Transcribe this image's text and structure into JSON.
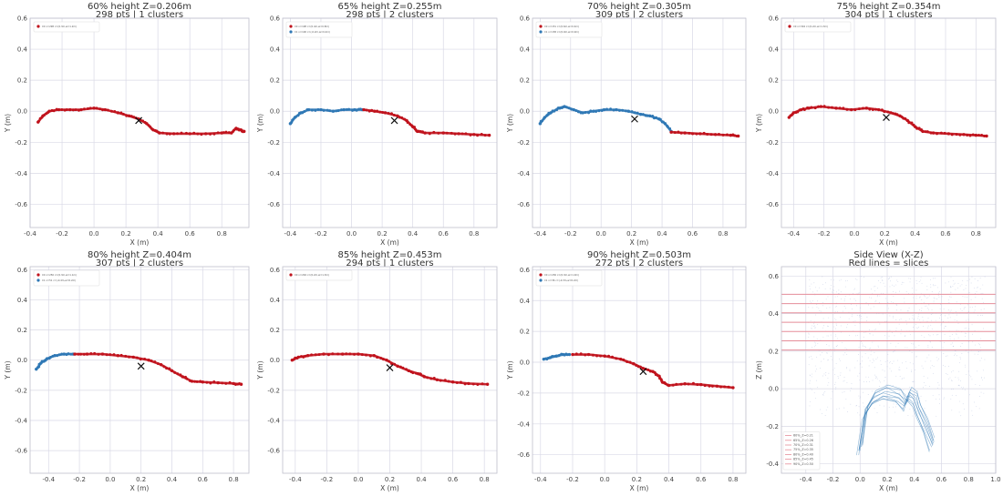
{
  "colors": {
    "red": "#c0121c",
    "blue": "#2f78b5",
    "slice": "#e58d99",
    "grid": "#d9d9e6",
    "cloud": "#a9b6d8",
    "box": "#bfbfcc"
  },
  "chart_data": [
    {
      "type": "scatter",
      "title": "60% height  Z=0.206m",
      "subtitle": "298 pts  |  1 clusters",
      "xlabel": "X (m)",
      "ylabel": "Y (m)",
      "xlim": [
        -0.4,
        0.97
      ],
      "ylim": [
        -0.75,
        0.6
      ],
      "xticks": [
        -0.4,
        -0.2,
        0.0,
        0.2,
        0.4,
        0.6,
        0.8
      ],
      "yticks": [
        0.6,
        0.4,
        0.2,
        0.0,
        -0.2,
        -0.4,
        -0.6
      ],
      "marker": {
        "x": 0.28,
        "y": -0.06
      },
      "legend": {
        "location": "upper-left",
        "entries": [
          {
            "label": "C0 n=298 c=(0.3m,w=1.2m)",
            "color": "red"
          }
        ]
      },
      "series": [
        {
          "color": "red",
          "points": [
            [
              -0.35,
              -0.07
            ],
            [
              -0.32,
              -0.03
            ],
            [
              -0.28,
              0.0
            ],
            [
              -0.22,
              0.01
            ],
            [
              -0.15,
              0.01
            ],
            [
              -0.08,
              0.01
            ],
            [
              0.0,
              0.02
            ],
            [
              0.07,
              0.01
            ],
            [
              0.15,
              -0.01
            ],
            [
              0.22,
              -0.03
            ],
            [
              0.28,
              -0.05
            ],
            [
              0.33,
              -0.08
            ],
            [
              0.37,
              -0.12
            ],
            [
              0.41,
              -0.14
            ],
            [
              0.5,
              -0.145
            ],
            [
              0.6,
              -0.145
            ],
            [
              0.7,
              -0.145
            ],
            [
              0.8,
              -0.14
            ],
            [
              0.86,
              -0.14
            ],
            [
              0.89,
              -0.11
            ],
            [
              0.92,
              -0.12
            ],
            [
              0.94,
              -0.13
            ]
          ]
        }
      ]
    },
    {
      "type": "scatter",
      "title": "65% height  Z=0.255m",
      "subtitle": "298 pts  |  2 clusters",
      "xlabel": "X (m)",
      "ylabel": "Y (m)",
      "xlim": [
        -0.45,
        0.95
      ],
      "ylim": [
        -0.75,
        0.6
      ],
      "xticks": [
        -0.4,
        -0.2,
        0.0,
        0.2,
        0.4,
        0.6,
        0.8
      ],
      "yticks": [
        0.6,
        0.4,
        0.2,
        0.0,
        -0.2,
        -0.4,
        -0.6
      ],
      "marker": {
        "x": 0.28,
        "y": -0.06
      },
      "legend": {
        "location": "upper-left",
        "entries": [
          {
            "label": "C0 n=198 c=(0.4m,w=0.8m)",
            "color": "red"
          },
          {
            "label": "C1 n=100 c=(-0.2m,w=0.4m)",
            "color": "blue"
          }
        ]
      },
      "series": [
        {
          "color": "blue",
          "points": [
            [
              -0.4,
              -0.08
            ],
            [
              -0.37,
              -0.04
            ],
            [
              -0.33,
              -0.01
            ],
            [
              -0.28,
              0.01
            ],
            [
              -0.2,
              0.01
            ],
            [
              -0.12,
              0.0
            ],
            [
              -0.05,
              0.01
            ],
            [
              0.02,
              0.01
            ],
            [
              0.07,
              0.01
            ]
          ]
        },
        {
          "color": "red",
          "points": [
            [
              0.08,
              0.01
            ],
            [
              0.15,
              0.0
            ],
            [
              0.22,
              -0.01
            ],
            [
              0.3,
              -0.03
            ],
            [
              0.36,
              -0.06
            ],
            [
              0.4,
              -0.1
            ],
            [
              0.43,
              -0.13
            ],
            [
              0.48,
              -0.14
            ],
            [
              0.6,
              -0.14
            ],
            [
              0.7,
              -0.145
            ],
            [
              0.8,
              -0.15
            ],
            [
              0.9,
              -0.155
            ]
          ]
        }
      ]
    },
    {
      "type": "scatter",
      "title": "70% height  Z=0.305m",
      "subtitle": "309 pts  |  2 clusters",
      "xlabel": "X (m)",
      "ylabel": "Y (m)",
      "xlim": [
        -0.45,
        0.95
      ],
      "ylim": [
        -0.75,
        0.6
      ],
      "xticks": [
        -0.4,
        -0.2,
        0.0,
        0.2,
        0.4,
        0.6,
        0.8
      ],
      "yticks": [
        0.6,
        0.4,
        0.2,
        0.0,
        -0.2,
        -0.4,
        -0.6
      ],
      "marker": {
        "x": 0.22,
        "y": -0.05
      },
      "legend": {
        "location": "upper-left",
        "entries": [
          {
            "label": "C0 n=151 c=(0.6m,w=0.4m)",
            "color": "red"
          },
          {
            "label": "C1 n=158 c=(0.0m,w=0.9m)",
            "color": "blue"
          }
        ]
      },
      "series": [
        {
          "color": "blue",
          "points": [
            [
              -0.4,
              -0.08
            ],
            [
              -0.37,
              -0.04
            ],
            [
              -0.33,
              -0.01
            ],
            [
              -0.28,
              0.02
            ],
            [
              -0.24,
              0.03
            ],
            [
              -0.18,
              0.01
            ],
            [
              -0.12,
              -0.01
            ],
            [
              -0.05,
              0.0
            ],
            [
              0.02,
              0.01
            ],
            [
              0.1,
              0.01
            ],
            [
              0.18,
              0.0
            ],
            [
              0.26,
              -0.02
            ],
            [
              0.32,
              -0.03
            ],
            [
              0.38,
              -0.05
            ],
            [
              0.42,
              -0.08
            ],
            [
              0.46,
              -0.13
            ]
          ]
        },
        {
          "color": "red",
          "points": [
            [
              0.46,
              -0.135
            ],
            [
              0.55,
              -0.14
            ],
            [
              0.65,
              -0.145
            ],
            [
              0.75,
              -0.15
            ],
            [
              0.85,
              -0.155
            ],
            [
              0.9,
              -0.16
            ]
          ]
        }
      ]
    },
    {
      "type": "scatter",
      "title": "75% height  Z=0.354m",
      "subtitle": "304 pts  |  1 clusters",
      "xlabel": "X (m)",
      "ylabel": "Y (m)",
      "xlim": [
        -0.48,
        0.93
      ],
      "ylim": [
        -0.75,
        0.6
      ],
      "xticks": [
        -0.4,
        -0.2,
        0.0,
        0.2,
        0.4,
        0.6,
        0.8
      ],
      "yticks": [
        0.6,
        0.4,
        0.2,
        0.0,
        -0.2,
        -0.4,
        -0.6
      ],
      "marker": {
        "x": 0.21,
        "y": -0.04
      },
      "legend": {
        "location": "upper-left",
        "entries": [
          {
            "label": "C0 n=304 c=(0.2m,w=1.3m)",
            "color": "red"
          }
        ]
      },
      "series": [
        {
          "color": "red",
          "points": [
            [
              -0.43,
              -0.04
            ],
            [
              -0.4,
              -0.01
            ],
            [
              -0.35,
              0.01
            ],
            [
              -0.3,
              0.02
            ],
            [
              -0.22,
              0.03
            ],
            [
              -0.12,
              0.02
            ],
            [
              -0.02,
              0.01
            ],
            [
              0.08,
              0.02
            ],
            [
              0.16,
              0.01
            ],
            [
              0.24,
              -0.01
            ],
            [
              0.3,
              -0.03
            ],
            [
              0.35,
              -0.06
            ],
            [
              0.4,
              -0.1
            ],
            [
              0.45,
              -0.13
            ],
            [
              0.52,
              -0.14
            ],
            [
              0.62,
              -0.145
            ],
            [
              0.72,
              -0.15
            ],
            [
              0.8,
              -0.155
            ],
            [
              0.87,
              -0.16
            ]
          ]
        }
      ]
    },
    {
      "type": "scatter",
      "title": "80% height  Z=0.404m",
      "subtitle": "307 pts  |  2 clusters",
      "xlabel": "X (m)",
      "ylabel": "Y (m)",
      "xlim": [
        -0.52,
        0.9
      ],
      "ylim": [
        -0.75,
        0.62
      ],
      "xticks": [
        -0.4,
        -0.2,
        0.0,
        0.2,
        0.4,
        0.6,
        0.8
      ],
      "yticks": [
        0.6,
        0.4,
        0.2,
        0.0,
        -0.2,
        -0.4,
        -0.6
      ],
      "marker": {
        "x": 0.2,
        "y": -0.04
      },
      "legend": {
        "location": "upper-left",
        "entries": [
          {
            "label": "C0 n=256 c=(0.3m,w=1.1m)",
            "color": "red"
          },
          {
            "label": "C1 n=51 c=(-0.4m,w=0.2m)",
            "color": "blue"
          }
        ]
      },
      "series": [
        {
          "color": "blue",
          "points": [
            [
              -0.48,
              -0.06
            ],
            [
              -0.45,
              -0.02
            ],
            [
              -0.41,
              0.01
            ],
            [
              -0.36,
              0.03
            ],
            [
              -0.3,
              0.04
            ],
            [
              -0.24,
              0.04
            ]
          ]
        },
        {
          "color": "red",
          "points": [
            [
              -0.23,
              0.04
            ],
            [
              -0.15,
              0.04
            ],
            [
              -0.05,
              0.04
            ],
            [
              0.05,
              0.03
            ],
            [
              0.15,
              0.02
            ],
            [
              0.25,
              0.0
            ],
            [
              0.33,
              -0.03
            ],
            [
              0.4,
              -0.07
            ],
            [
              0.47,
              -0.11
            ],
            [
              0.53,
              -0.14
            ],
            [
              0.6,
              -0.145
            ],
            [
              0.7,
              -0.15
            ],
            [
              0.8,
              -0.155
            ],
            [
              0.85,
              -0.16
            ]
          ]
        }
      ]
    },
    {
      "type": "scatter",
      "title": "85% height  Z=0.453m",
      "subtitle": "294 pts  |  1 clusters",
      "xlabel": "X (m)",
      "ylabel": "Y (m)",
      "xlim": [
        -0.48,
        0.88
      ],
      "ylim": [
        -0.75,
        0.62
      ],
      "xticks": [
        -0.4,
        -0.2,
        0.0,
        0.2,
        0.4,
        0.6,
        0.8
      ],
      "yticks": [
        0.6,
        0.4,
        0.2,
        0.0,
        -0.2,
        -0.4,
        -0.6
      ],
      "marker": {
        "x": 0.2,
        "y": -0.05
      },
      "legend": {
        "location": "upper-left",
        "entries": [
          {
            "label": "C0 n=294 c=(0.2m,w=1.3m)",
            "color": "red"
          }
        ]
      },
      "series": [
        {
          "color": "red",
          "points": [
            [
              -0.42,
              0.0
            ],
            [
              -0.38,
              0.02
            ],
            [
              -0.32,
              0.03
            ],
            [
              -0.22,
              0.04
            ],
            [
              -0.1,
              0.04
            ],
            [
              0.0,
              0.04
            ],
            [
              0.1,
              0.03
            ],
            [
              0.18,
              0.0
            ],
            [
              0.25,
              -0.04
            ],
            [
              0.32,
              -0.07
            ],
            [
              0.38,
              -0.09
            ],
            [
              0.42,
              -0.11
            ],
            [
              0.5,
              -0.13
            ],
            [
              0.6,
              -0.145
            ],
            [
              0.7,
              -0.155
            ],
            [
              0.82,
              -0.16
            ]
          ]
        }
      ]
    },
    {
      "type": "scatter",
      "title": "90% height  Z=0.503m",
      "subtitle": "272 pts  |  2 clusters",
      "xlabel": "X (m)",
      "ylabel": "Y (m)",
      "xlim": [
        -0.45,
        0.88
      ],
      "ylim": [
        -0.72,
        0.62
      ],
      "xticks": [
        -0.4,
        -0.2,
        0.0,
        0.2,
        0.4,
        0.6,
        0.8
      ],
      "yticks": [
        0.6,
        0.4,
        0.2,
        0.0,
        -0.2,
        -0.4,
        -0.6
      ],
      "marker": {
        "x": 0.24,
        "y": -0.06
      },
      "legend": {
        "location": "upper-left",
        "entries": [
          {
            "label": "C0 n=236 c=(0.3m,w=1.0m)",
            "color": "red"
          },
          {
            "label": "C1 n=36 c=(-0.3m,w=0.2m)",
            "color": "blue"
          }
        ]
      },
      "series": [
        {
          "color": "blue",
          "points": [
            [
              -0.38,
              0.02
            ],
            [
              -0.34,
              0.03
            ],
            [
              -0.3,
              0.04
            ],
            [
              -0.26,
              0.05
            ],
            [
              -0.22,
              0.05
            ]
          ]
        },
        {
          "color": "red",
          "points": [
            [
              -0.2,
              0.05
            ],
            [
              -0.1,
              0.05
            ],
            [
              0.0,
              0.04
            ],
            [
              0.1,
              0.02
            ],
            [
              0.18,
              -0.01
            ],
            [
              0.24,
              -0.04
            ],
            [
              0.3,
              -0.06
            ],
            [
              0.34,
              -0.09
            ],
            [
              0.36,
              -0.13
            ],
            [
              0.4,
              -0.15
            ],
            [
              0.5,
              -0.14
            ],
            [
              0.6,
              -0.145
            ],
            [
              0.7,
              -0.155
            ],
            [
              0.8,
              -0.165
            ]
          ]
        }
      ]
    },
    {
      "type": "scatter",
      "title": "Side View (X-Z)",
      "subtitle": "Red lines = slices",
      "xlabel": "X (m)",
      "ylabel": "Z (m)",
      "xlim": [
        -0.58,
        1.0
      ],
      "ylim": [
        -0.45,
        0.65
      ],
      "xticks": [
        -0.4,
        -0.2,
        0.0,
        0.2,
        0.4,
        0.6,
        0.8,
        1.0
      ],
      "yticks": [
        0.6,
        0.4,
        0.2,
        0.0,
        -0.2,
        -0.4
      ],
      "slices": [
        0.206,
        0.255,
        0.305,
        0.354,
        0.404,
        0.453,
        0.503
      ],
      "cloud_region": {
        "x": [
          -0.38,
          0.92
        ],
        "z": [
          -0.15,
          0.6
        ]
      },
      "structure": [
        [
          0.0,
          -0.32
        ],
        [
          0.04,
          -0.12
        ],
        [
          0.1,
          -0.05
        ],
        [
          0.18,
          -0.02
        ],
        [
          0.28,
          -0.04
        ],
        [
          0.33,
          -0.08
        ],
        [
          0.36,
          -0.03
        ],
        [
          0.4,
          -0.05
        ],
        [
          0.43,
          -0.12
        ],
        [
          0.48,
          -0.2
        ],
        [
          0.53,
          -0.3
        ]
      ],
      "legend": {
        "location": "lower-left",
        "entries": [
          {
            "label": "60%_Z=0.21",
            "color": "slice"
          },
          {
            "label": "65%_Z=0.26",
            "color": "slice"
          },
          {
            "label": "70%_Z=0.31",
            "color": "slice"
          },
          {
            "label": "75%_Z=0.35",
            "color": "slice"
          },
          {
            "label": "80%_Z=0.40",
            "color": "slice"
          },
          {
            "label": "85%_Z=0.45",
            "color": "slice"
          },
          {
            "label": "90%_Z=0.50",
            "color": "slice"
          }
        ]
      }
    }
  ]
}
